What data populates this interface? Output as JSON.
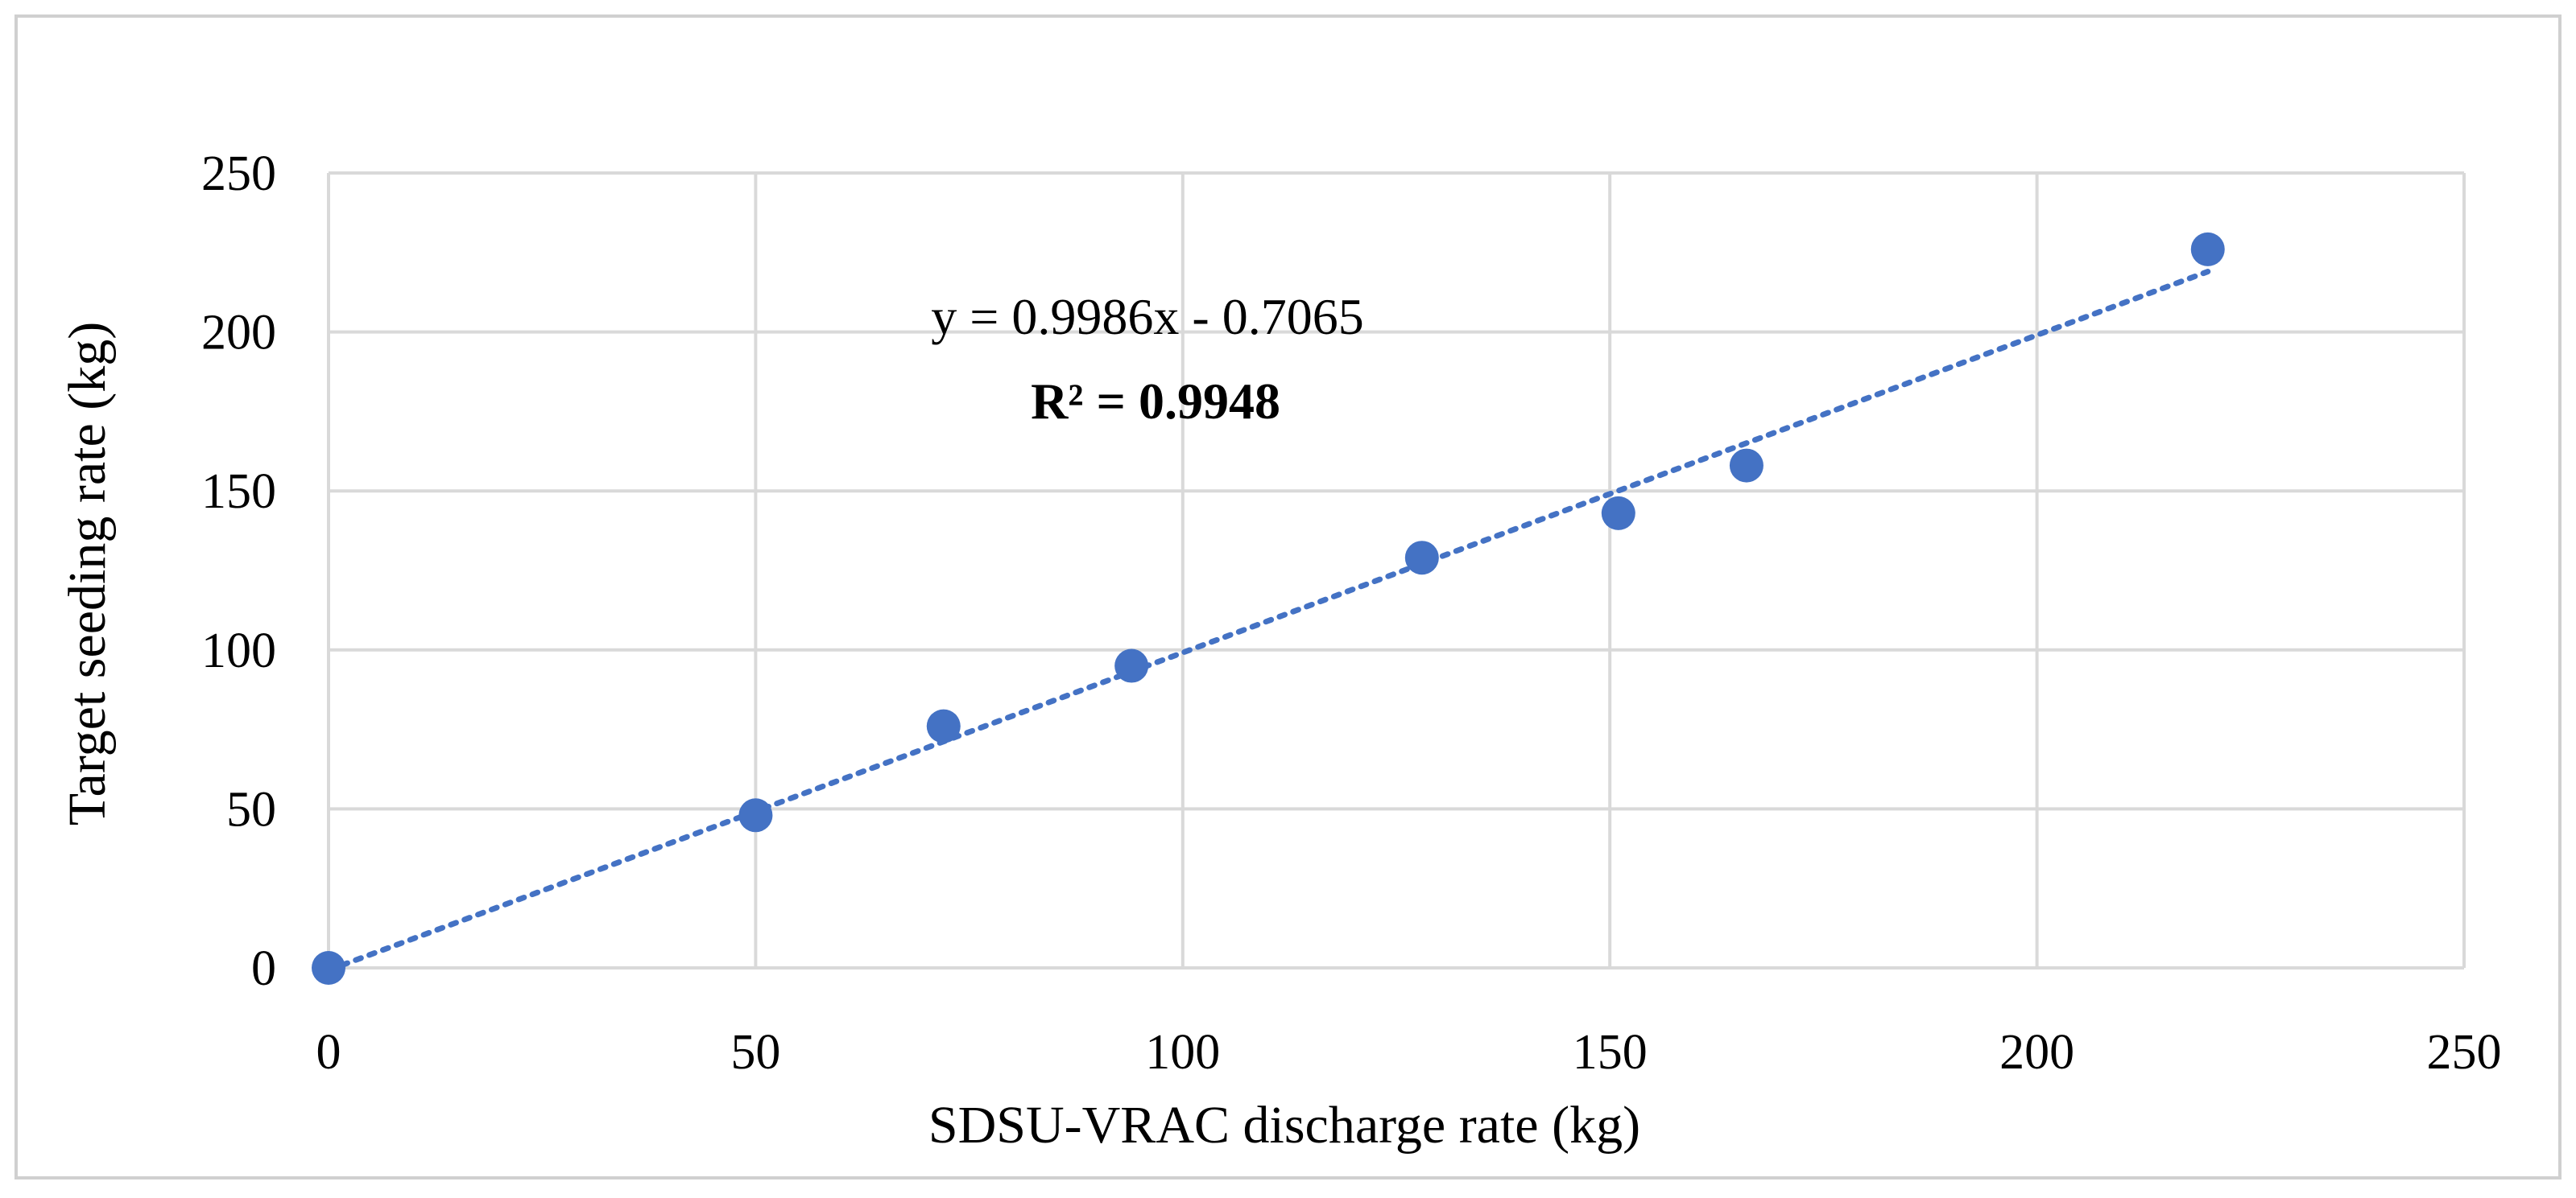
{
  "chart_data": {
    "type": "scatter",
    "title": "",
    "xlabel": "SDSU-VRAC discharge rate (kg)",
    "ylabel": "Target seeding rate (kg)",
    "xlim": [
      0,
      250
    ],
    "ylim": [
      0,
      250
    ],
    "xticks": [
      0,
      50,
      100,
      150,
      200,
      250
    ],
    "yticks": [
      0,
      50,
      100,
      150,
      200,
      250
    ],
    "grid": true,
    "series": [
      {
        "name": "Target seeding rate",
        "color": "#4472C4",
        "x": [
          0,
          50,
          72,
          94,
          128,
          151,
          166,
          220
        ],
        "y": [
          0,
          48,
          76,
          95,
          129,
          143,
          158,
          226
        ]
      }
    ],
    "trendline": {
      "type": "linear",
      "slope": 0.9986,
      "intercept": -0.7065,
      "x_range": [
        0,
        220
      ],
      "color": "#4472C4",
      "style": "dotted"
    },
    "annotations": {
      "equation": "y = 0.9986x - 0.7065",
      "r_squared": "R² = 0.9948"
    }
  }
}
